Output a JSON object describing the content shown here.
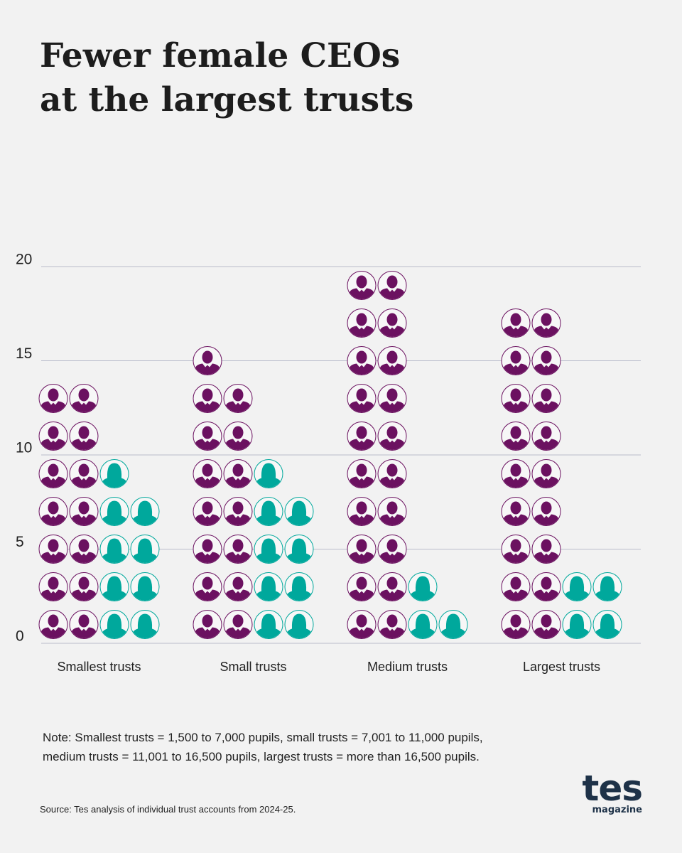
{
  "chart_data": {
    "type": "pictogram",
    "title": [
      "Fewer female CEOs",
      "at the largest trusts"
    ],
    "categories": [
      "Smallest trusts",
      "Small trusts",
      "Medium trusts",
      "Largest trusts"
    ],
    "series": [
      {
        "color": "#6b1160",
        "values": [
          14,
          15,
          20,
          18
        ]
      },
      {
        "color": "#00a89c",
        "values": [
          9,
          9,
          3,
          4
        ]
      }
    ],
    "ylim": [
      0,
      20
    ],
    "yticks": [
      0,
      5,
      10,
      15,
      20
    ],
    "grid": true,
    "note": [
      "Note: Smallest trusts = 1,500 to 7,000 pupils, small trusts = 7,001 to 11,000 pupils,",
      "medium trusts = 11,001 to 16,500 pupils, largest trusts = more than 16,500 pupils."
    ],
    "source": "Source: Tes analysis of individual trust accounts from 2024-25.",
    "logo": {
      "name": "tes",
      "tagline": "magazine"
    }
  }
}
